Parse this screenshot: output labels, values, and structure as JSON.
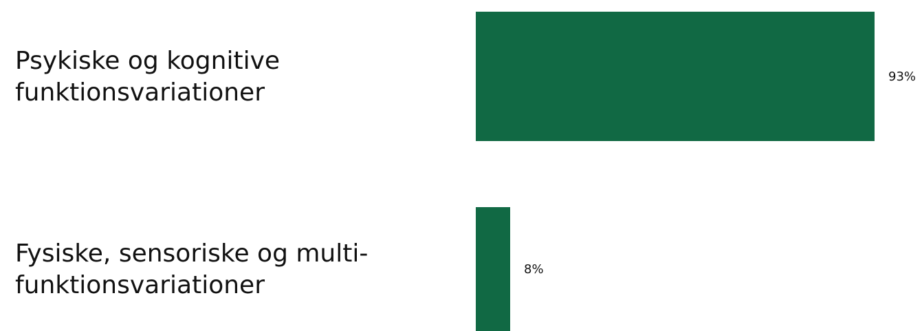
{
  "chart_data": {
    "type": "bar",
    "orientation": "horizontal",
    "categories": [
      [
        "Psykiske og kognitive",
        "funktionsvariationer"
      ],
      [
        "Fysiske, sensoriske og multi-",
        "funktionsvariationer"
      ]
    ],
    "values": [
      93,
      8
    ],
    "value_labels": [
      "93%",
      "8%"
    ],
    "unit": "%",
    "xlim": [
      0,
      100
    ],
    "grid": false,
    "legend": "none",
    "bar_color": "#116944"
  }
}
